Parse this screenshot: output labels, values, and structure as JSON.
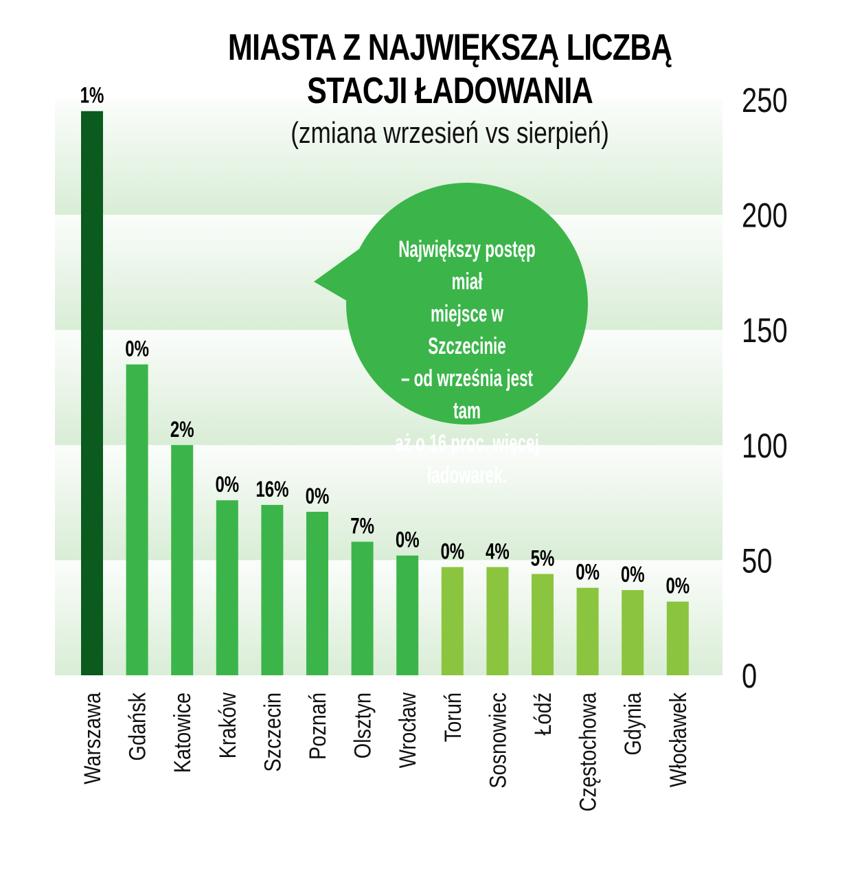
{
  "chart_data": {
    "type": "bar",
    "title": "MIASTA Z NAJWIĘKSZĄ LICZBĄ STACJI ŁADOWANIA",
    "title_lines": [
      "MIASTA Z NAJWIĘKSZĄ LICZBĄ",
      "STACJI ŁADOWANIA"
    ],
    "subtitle": "(zmiana wrzesień vs sierpień)",
    "categories": [
      "Warszawa",
      "Gdańsk",
      "Katowice",
      "Kraków",
      "Szczecin",
      "Poznań",
      "Olsztyn",
      "Wrocław",
      "Toruń",
      "Sosnowiec",
      "Łódź",
      "Częstochowa",
      "Gdynia",
      "Włocławek"
    ],
    "values": [
      245,
      135,
      100,
      76,
      74,
      71,
      58,
      52,
      47,
      47,
      44,
      38,
      37,
      32
    ],
    "data_labels": [
      "1%",
      "0%",
      "2%",
      "0%",
      "16%",
      "0%",
      "7%",
      "0%",
      "0%",
      "4%",
      "5%",
      "0%",
      "0%",
      "0%"
    ],
    "bar_colors": [
      "#0b5a1e",
      "#3bb54a",
      "#3bb54a",
      "#3bb54a",
      "#3bb54a",
      "#3bb54a",
      "#3bb54a",
      "#3bb54a",
      "#8bc43f",
      "#8bc43f",
      "#8bc43f",
      "#8bc43f",
      "#8bc43f",
      "#8bc43f"
    ],
    "y_ticks": [
      "0",
      "50",
      "100",
      "150",
      "200",
      "250"
    ],
    "ylim": [
      0,
      250
    ],
    "y_axis_position": "right",
    "grid": "alternating bands",
    "xlabel": "",
    "ylabel": "",
    "annotation": {
      "lines": [
        "Największy postęp miał",
        "miejsce w Szczecinie",
        "– od września jest tam",
        "aż o 16 proc. więcej",
        "ładowarek."
      ],
      "color": "#3bb54a"
    }
  }
}
